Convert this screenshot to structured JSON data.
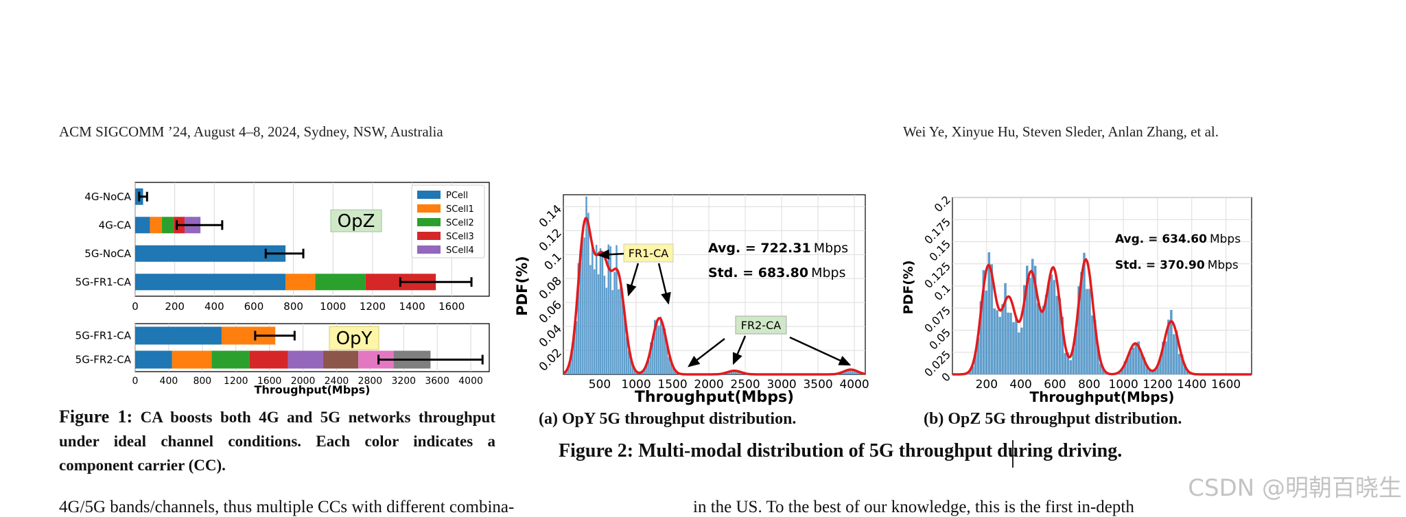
{
  "header": {
    "left": "ACM SIGCOMM ’24, August 4–8, 2024, Sydney, NSW, Australia",
    "right": "Wei Ye, Xinyue Hu, Steven Sleder, Anlan Zhang, et al."
  },
  "figure1": {
    "caption_label": "Figure 1:",
    "caption_text": "CA boosts both 4G and 5G networks throughput under ideal channel conditions. Each color indicates a component carrier (CC).",
    "legend": [
      {
        "name": "PCell",
        "color": "#1f77b4"
      },
      {
        "name": "SCell1",
        "color": "#ff7f0e"
      },
      {
        "name": "SCell2",
        "color": "#2ca02c"
      },
      {
        "name": "SCell3",
        "color": "#d62728"
      },
      {
        "name": "SCell4",
        "color": "#9467bd"
      }
    ],
    "xlabel": "Throughput(Mbps)"
  },
  "figure2": {
    "caption": "Figure 2: Multi-modal distribution of 5G throughput during driving.",
    "sub_a": "(a) OpY 5G throughput distribution.",
    "sub_b": "(b) OpZ 5G throughput distribution."
  },
  "body_text": {
    "left": "4G/5G bands/channels, thus multiple CCs with different combina-",
    "right": "in the US. To the best of our knowledge, this is the first in-depth"
  },
  "watermark": "CSDN @明朝百晓生",
  "chart_data": [
    {
      "type": "bar",
      "orientation": "horizontal-stacked",
      "annotation": "OpZ",
      "categories": [
        "4G-NoCA",
        "4G-CA",
        "5G-NoCA",
        "5G-FR1-CA"
      ],
      "series": [
        {
          "name": "PCell",
          "values": [
            40,
            75,
            760,
            760
          ]
        },
        {
          "name": "SCell1",
          "values": [
            0,
            60,
            0,
            150
          ]
        },
        {
          "name": "SCell2",
          "values": [
            0,
            60,
            0,
            255
          ]
        },
        {
          "name": "SCell3",
          "values": [
            0,
            55,
            0,
            355
          ]
        },
        {
          "name": "SCell4",
          "values": [
            0,
            80,
            0,
            0
          ]
        }
      ],
      "error_bars": [
        [
          20,
          60
        ],
        [
          210,
          440
        ],
        [
          660,
          850
        ],
        [
          1340,
          1700
        ]
      ],
      "xticks": [
        "0",
        "200",
        "400",
        "600",
        "800",
        "1000",
        "1200",
        "1400",
        "1600"
      ],
      "xlim": [
        0,
        1790
      ]
    },
    {
      "type": "bar",
      "orientation": "horizontal-stacked",
      "annotation": "OpY",
      "categories": [
        "5G-FR1-CA",
        "5G-FR2-CA"
      ],
      "segments": [
        [
          {
            "value": 1030,
            "color": "#1f77b4"
          },
          {
            "value": 640,
            "color": "#ff7f0e"
          }
        ],
        [
          {
            "value": 440,
            "color": "#1f77b4"
          },
          {
            "value": 470,
            "color": "#ff7f0e"
          },
          {
            "value": 450,
            "color": "#2ca02c"
          },
          {
            "value": 460,
            "color": "#d62728"
          },
          {
            "value": 420,
            "color": "#9467bd"
          },
          {
            "value": 420,
            "color": "#8c564b"
          },
          {
            "value": 420,
            "color": "#e377c2"
          },
          {
            "value": 440,
            "color": "#7f7f7f"
          }
        ]
      ],
      "error_bars": [
        [
          1430,
          1900
        ],
        [
          2900,
          4140
        ]
      ],
      "xticks": [
        "0",
        "400",
        "800",
        "1200",
        "1600",
        "2000",
        "2400",
        "2800",
        "3200",
        "3600",
        "4000"
      ],
      "xlim": [
        0,
        4220
      ],
      "xlabel": "Throughput(Mbps)"
    },
    {
      "type": "histogram",
      "title": "OpY",
      "xlabel": "Throughput(Mbps)",
      "ylabel": "PDF(%)",
      "xlim": [
        0,
        4150
      ],
      "ylim": [
        0,
        0.15
      ],
      "xticks": [
        "500",
        "1000",
        "1500",
        "2000",
        "2500",
        "3000",
        "3500",
        "4000"
      ],
      "yticks": [
        "0.02",
        "0.04",
        "0.06",
        "0.08",
        "0.1",
        "0.12",
        "0.14"
      ],
      "avg_label": "Avg. = 722.31",
      "std_label": "Std. = 683.80",
      "unit": "Mbps",
      "annotations": [
        "FR1-CA",
        "FR2-CA"
      ],
      "density_peaks": [
        {
          "x": 300,
          "y": 0.125
        },
        {
          "x": 530,
          "y": 0.09
        },
        {
          "x": 750,
          "y": 0.08
        },
        {
          "x": 1320,
          "y": 0.047
        },
        {
          "x": 2350,
          "y": 0.003
        },
        {
          "x": 3950,
          "y": 0.004
        }
      ]
    },
    {
      "type": "histogram",
      "title": "OpZ",
      "xlabel": "Throughput(Mbps)",
      "ylabel": "PDF(%)",
      "xlim": [
        0,
        1750
      ],
      "ylim": [
        0,
        0.2
      ],
      "xticks": [
        "200",
        "400",
        "600",
        "800",
        "1000",
        "1200",
        "1400",
        "1600"
      ],
      "yticks": [
        "0",
        "0.025",
        "0.05",
        "0.075",
        "0.1",
        "0.125",
        "0.15",
        "0.175",
        "0.2"
      ],
      "avg_label": "Avg. = 634.60",
      "std_label": "Std. = 370.90",
      "unit": "Mbps",
      "density_peaks": [
        {
          "x": 210,
          "y": 0.122
        },
        {
          "x": 330,
          "y": 0.085
        },
        {
          "x": 460,
          "y": 0.115
        },
        {
          "x": 590,
          "y": 0.12
        },
        {
          "x": 780,
          "y": 0.13
        },
        {
          "x": 1070,
          "y": 0.035
        },
        {
          "x": 1280,
          "y": 0.06
        }
      ]
    }
  ]
}
